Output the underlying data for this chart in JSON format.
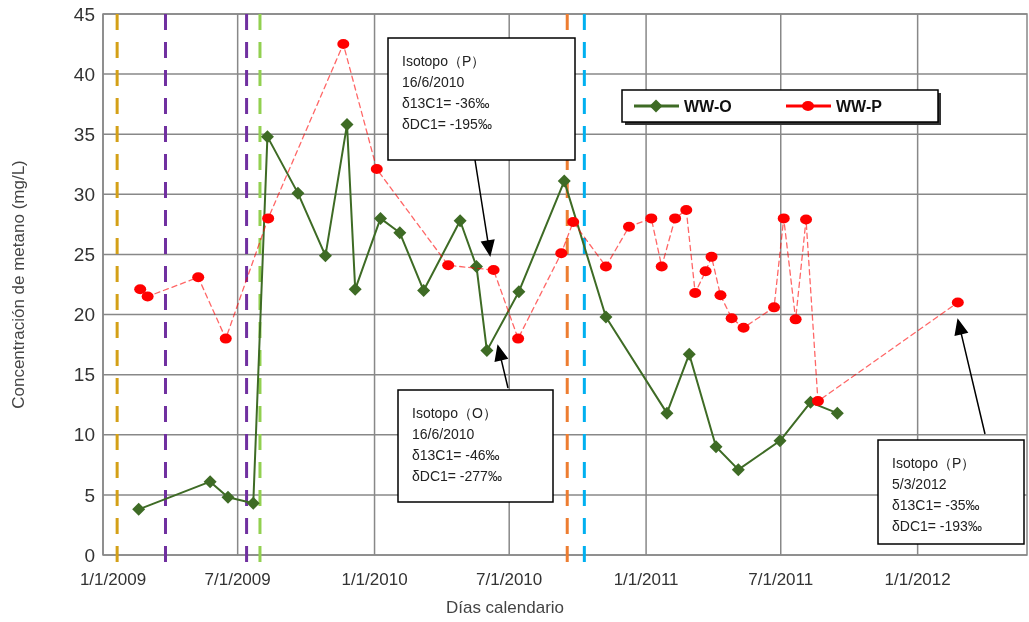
{
  "chart_data": {
    "type": "line",
    "xlabel": "Días calendario",
    "ylabel": "Concentración de metano (mg/L)",
    "xlim": [
      "2009-01-01",
      "2012-05-27"
    ],
    "ylim": [
      0,
      45
    ],
    "yticks": [
      0,
      5,
      10,
      15,
      20,
      25,
      30,
      35,
      40,
      45
    ],
    "xticks": [
      {
        "value": "2009-01-01",
        "label": "1/1/2009"
      },
      {
        "value": "2009-07-01",
        "label": "7/1/2009"
      },
      {
        "value": "2010-01-01",
        "label": "1/1/2010"
      },
      {
        "value": "2010-07-01",
        "label": "7/1/2010"
      },
      {
        "value": "2011-01-01",
        "label": "1/1/2011"
      },
      {
        "value": "2011-07-01",
        "label": "7/1/2011"
      },
      {
        "value": "2012-01-01",
        "label": "1/1/2012"
      }
    ],
    "grid": true,
    "legend": "top right",
    "series": [
      {
        "name": "WW-O",
        "color": "#3e6b25",
        "marker": "diamond",
        "line_style": "solid",
        "x": [
          "2009-02-18",
          "2009-05-25",
          "2009-06-18",
          "2009-07-22",
          "2009-08-10",
          "2009-09-20",
          "2009-10-27",
          "2009-11-25",
          "2009-12-06",
          "2010-01-09",
          "2010-02-04",
          "2010-03-08",
          "2010-04-26",
          "2010-05-18",
          "2010-06-01",
          "2010-07-14",
          "2010-09-13",
          "2010-11-08",
          "2011-01-29",
          "2011-02-28",
          "2011-04-05",
          "2011-05-05",
          "2011-06-30",
          "2011-08-10",
          "2011-09-15"
        ],
        "values": [
          3.8,
          6.1,
          4.8,
          4.3,
          34.8,
          30.1,
          24.9,
          35.8,
          22.1,
          28.0,
          26.8,
          22.0,
          27.8,
          24.0,
          17.0,
          21.9,
          31.1,
          19.8,
          11.8,
          16.7,
          9.0,
          7.1,
          9.5,
          12.7,
          11.8
        ]
      },
      {
        "name": "WW-P",
        "color": "#ff0000",
        "marker": "circle",
        "line_style": "dashed",
        "x": [
          "2009-02-20",
          "2009-03-02",
          "2009-05-09",
          "2009-06-15",
          "2009-08-11",
          "2009-11-20",
          "2010-01-04",
          "2010-04-10",
          "2010-06-10",
          "2010-07-13",
          "2010-09-09",
          "2010-09-25",
          "2010-11-08",
          "2010-12-09",
          "2011-01-08",
          "2011-01-22",
          "2011-02-09",
          "2011-02-24",
          "2011-03-08",
          "2011-03-22",
          "2011-03-30",
          "2011-04-11",
          "2011-04-26",
          "2011-05-12",
          "2011-06-22",
          "2011-07-05",
          "2011-07-21",
          "2011-08-04",
          "2011-08-20",
          "2012-02-24"
        ],
        "values": [
          22.1,
          21.5,
          23.1,
          18.0,
          28.0,
          42.5,
          32.1,
          24.1,
          23.7,
          18.0,
          25.1,
          27.7,
          24.0,
          27.3,
          28.0,
          24.0,
          28.0,
          28.7,
          21.8,
          23.6,
          24.8,
          21.6,
          19.7,
          18.9,
          20.6,
          28.0,
          19.6,
          27.9,
          12.8,
          21.0
        ]
      }
    ],
    "ref_lines": [
      {
        "axis": "x",
        "value": "2009-01-20",
        "color": "#d4a017",
        "line_style": "dashed"
      },
      {
        "axis": "x",
        "value": "2009-03-26",
        "color": "#7030a0",
        "line_style": "dashed"
      },
      {
        "axis": "x",
        "value": "2009-07-13",
        "color": "#7030a0",
        "line_style": "dashed"
      },
      {
        "axis": "x",
        "value": "2009-07-31",
        "color": "#92d050",
        "line_style": "dashed"
      },
      {
        "axis": "x",
        "value": "2010-09-17",
        "color": "#ed7d31",
        "line_style": "dashed"
      },
      {
        "axis": "x",
        "value": "2010-10-10",
        "color": "#00b0f0",
        "line_style": "dashed"
      }
    ],
    "annotations": [
      "Isotopo（P）\n16/6/2010\nδ13C1= -36‰\nδDC1= -195‰",
      "Isotopo（O）\n16/6/2010\nδ13C1= -46‰\nδDC1= -277‰",
      "Isotopo（P）\n5/3/2012\nδ13C1= -35‰\nδDC1= -193‰"
    ]
  }
}
